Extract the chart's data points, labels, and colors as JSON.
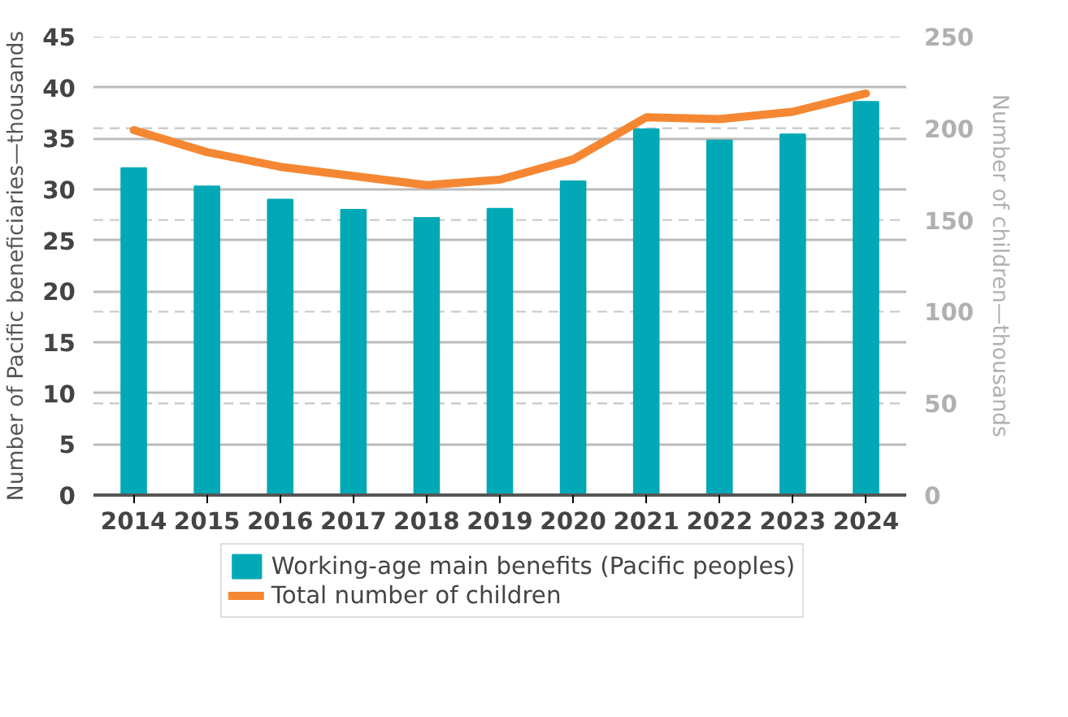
{
  "chart_data": {
    "type": "bar",
    "categories": [
      "2014",
      "2015",
      "2016",
      "2017",
      "2018",
      "2019",
      "2020",
      "2021",
      "2022",
      "2023",
      "2024"
    ],
    "ylabel": "Number of Pacific beneficiaries—thousands",
    "y2label": "Number of children—thousands",
    "ylim": [
      0,
      45
    ],
    "yticks": [
      0,
      5,
      10,
      15,
      20,
      25,
      30,
      35,
      40,
      45
    ],
    "y2lim": [
      0,
      250
    ],
    "y2ticks": [
      0,
      50,
      100,
      150,
      200,
      250
    ],
    "grid": "y",
    "legend": "bottom",
    "series": [
      {
        "name": "Working-age main benefits (Pacific peoples)",
        "color": "#00a9b5",
        "values": [
          32.1,
          30.3,
          29.0,
          28.0,
          27.2,
          28.1,
          30.8,
          35.9,
          34.8,
          35.4,
          38.6
        ]
      },
      {
        "name": "Total number of children",
        "type": "line",
        "axis": "y2",
        "color": "#f58733",
        "values": [
          199,
          187,
          179,
          174,
          169,
          172,
          183,
          206,
          205,
          209,
          219
        ]
      }
    ]
  }
}
